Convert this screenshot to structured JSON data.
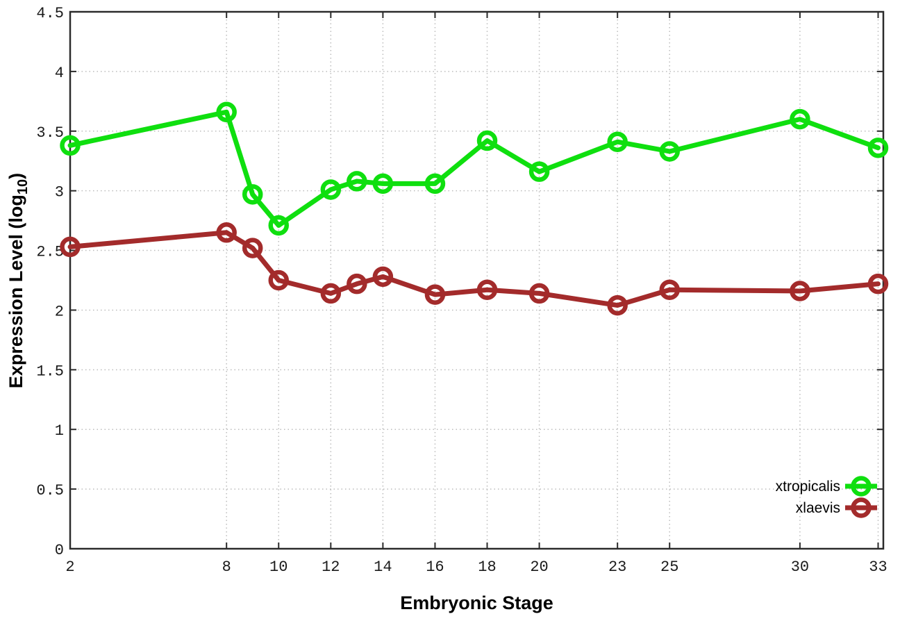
{
  "chart_data": {
    "type": "line",
    "title": "",
    "xlabel": "Embryonic Stage",
    "ylabel_parts": {
      "prefix": "Expression Level (log",
      "subscript": "10",
      "suffix": ")"
    },
    "x": [
      2,
      8,
      9,
      10,
      12,
      13,
      14,
      16,
      18,
      20,
      23,
      25,
      30,
      33
    ],
    "series": [
      {
        "name": "xtropicalis",
        "color": "#0fdf0f",
        "values": [
          3.38,
          3.66,
          2.97,
          2.71,
          3.01,
          3.08,
          3.06,
          3.06,
          3.42,
          3.16,
          3.41,
          3.33,
          3.6,
          3.36
        ]
      },
      {
        "name": "xlaevis",
        "color": "#a32b2b",
        "values": [
          2.53,
          2.65,
          2.52,
          2.25,
          2.14,
          2.22,
          2.28,
          2.13,
          2.17,
          2.14,
          2.04,
          2.17,
          2.16,
          2.22
        ]
      }
    ],
    "x_ticks": [
      2,
      8,
      10,
      12,
      14,
      16,
      18,
      20,
      23,
      25,
      30,
      33
    ],
    "y_ticks": [
      0,
      0.5,
      1,
      1.5,
      2,
      2.5,
      3,
      3.5,
      4,
      4.5
    ],
    "xlim": [
      2,
      33.2
    ],
    "ylim": [
      0,
      4.5
    ],
    "grid": true,
    "legend_position": "bottom-right",
    "marker": "open-circle",
    "style": {
      "line_width": 7,
      "marker_radius": 11.5,
      "marker_stroke": 6.5,
      "axis_color": "#2b2b2b",
      "grid_color": "#bcbcbc",
      "background": "#ffffff"
    }
  }
}
